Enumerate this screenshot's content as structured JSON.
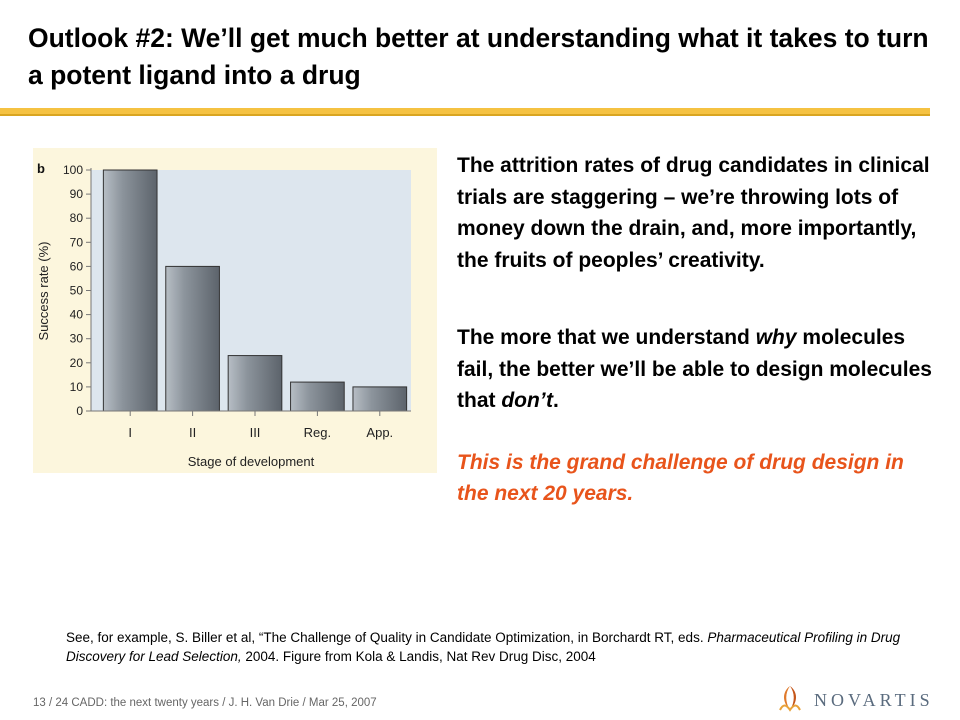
{
  "slide": {
    "title": "Outlook #2:  We’ll get much better at understanding what it takes to turn a potent ligand into a drug",
    "paragraph_1": "The attrition rates of drug candidates in clinical trials are staggering – we’re throwing lots of money down the drain, and, more importantly, the fruits of peoples’ creativity.",
    "paragraph_2": {
      "part_1": "The more that we understand ",
      "emph_1": "why",
      "part_2": " molecules fail, the better we’ll be able to design molecules that ",
      "emph_2": "don’t",
      "part_3": "."
    },
    "paragraph_3": "This is the grand challenge of drug design in the next 20 years.",
    "citation": {
      "part_1": "See, for example, S. Biller et al, “The Challenge of Quality in Candidate Optimization, in Borchardt RT, eds. ",
      "italic": "Pharmaceutical Profiling in Drug Discovery for Lead Selection,",
      "part_2": " 2004.  Figure from Kola & Landis, Nat Rev Drug Disc, 2004"
    },
    "footer": "13 / 24 CADD:  the next twenty years / J. H. Van Drie / Mar 25, 2007",
    "logo_text": "NOVARTIS",
    "colors": {
      "title_rule": "#f5c242",
      "emphasis": "#e8541b",
      "figure_bg": "#fcf6dd",
      "plot_bg": "#dde6ee",
      "bar": "#8a929a"
    }
  },
  "chart_data": {
    "type": "bar",
    "panel_label": "b",
    "categories": [
      "I",
      "II",
      "III",
      "Reg.",
      "App."
    ],
    "values": [
      100,
      60,
      23,
      12,
      10
    ],
    "ylabel": "Success rate (%)",
    "xlabel": "Stage of development",
    "ylim": [
      0,
      100
    ],
    "yticks": [
      0,
      10,
      20,
      30,
      40,
      50,
      60,
      70,
      80,
      90,
      100
    ],
    "grid": false
  }
}
